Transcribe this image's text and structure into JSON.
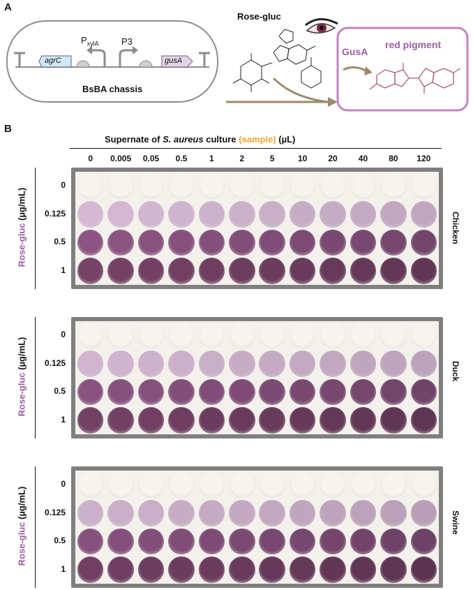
{
  "panelA": {
    "letter": "A",
    "chassis_label": "BsBA chassis",
    "gene_agrC": "agrC",
    "gene_gusA": "gusA",
    "promoter_main": "P",
    "promoter_sub": "xylA",
    "promoter_p3": "P3",
    "substrate_label": "Rose-gluc",
    "enzyme_label": "GusA",
    "product_label": "red pigment"
  },
  "panelB": {
    "letter": "B",
    "header_prefix": "Supernate of ",
    "header_species": "S. aureus",
    "header_middle": " culture ",
    "header_sample": "(sample)",
    "header_unit": " (µL)",
    "columns": [
      "0",
      "0.005",
      "0.05",
      "0.5",
      "1",
      "2",
      "5",
      "10",
      "20",
      "40",
      "80",
      "120"
    ],
    "rows": [
      "0",
      "0.125",
      "0.5",
      "1"
    ],
    "y_label_colored": "Rose-gluc",
    "y_label_unit": " (µg/mL)",
    "plates": [
      {
        "name": "Chicken"
      },
      {
        "name": "Duck"
      },
      {
        "name": "Swine"
      }
    ]
  },
  "colors": {
    "purple_label": "#9b5f9f",
    "orange_label": "#f0a52c",
    "pink_outline": "#c582c2",
    "arrow_brown": "#9c8a6e",
    "gene_blue": "#cfe8f7",
    "gene_pink": "#e6d3ea"
  }
}
